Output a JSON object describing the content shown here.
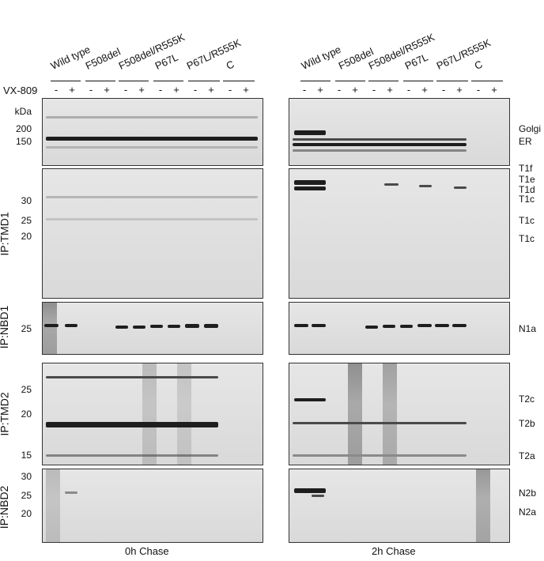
{
  "samples": [
    "Wild type",
    "F508del",
    "F508del/R555K",
    "P67L",
    "P67L/R555K",
    "C"
  ],
  "vx_label": "VX-809",
  "minus": "-",
  "plus": "+",
  "kda_label": "kDa",
  "ip_labels": [
    "IP:TMD1",
    "IP:NBD1",
    "IP:TMD2",
    "IP:NBD2"
  ],
  "markers": {
    "p1": [
      "200",
      "150"
    ],
    "p2": [
      "30",
      "25",
      "20"
    ],
    "p3": [
      "25"
    ],
    "p4": [
      "25",
      "20",
      "15"
    ],
    "p5": [
      "30",
      "25",
      "20"
    ]
  },
  "right_labels": {
    "p1": [
      "Golgi",
      "ER"
    ],
    "p2": [
      "T1f",
      "T1e",
      "T1d",
      "T1c",
      "T1c",
      "T1c"
    ],
    "p3": [
      "N1a"
    ],
    "p4": [
      "T2c",
      "T2b",
      "T2a"
    ],
    "p5": [
      "N2b",
      "N2a"
    ]
  },
  "chase": [
    "0h Chase",
    "2h Chase"
  ],
  "colors": {
    "band_dark": "#1e1e1e",
    "background": "#dedede"
  }
}
